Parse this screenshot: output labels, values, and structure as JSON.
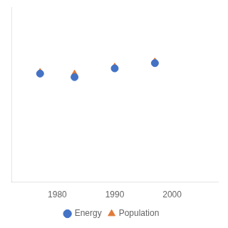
{
  "chart_data": {
    "type": "scatter",
    "x": [
      1977,
      1983,
      1990,
      1997
    ],
    "series": [
      {
        "name": "Energy",
        "color": "#4472c4",
        "marker": "circle",
        "values": [
          0.62,
          0.6,
          0.65,
          0.68
        ]
      },
      {
        "name": "Population",
        "color": "#e07b39",
        "marker": "triangle",
        "values": [
          0.63,
          0.62,
          0.66,
          0.69
        ]
      }
    ],
    "xlim": [
      1972,
      2008
    ],
    "xticks": [
      1980,
      1990,
      2000
    ],
    "ylim": [
      0.0,
      1.0
    ],
    "tick_labels": "x",
    "grid": false,
    "legend": "bottom"
  }
}
